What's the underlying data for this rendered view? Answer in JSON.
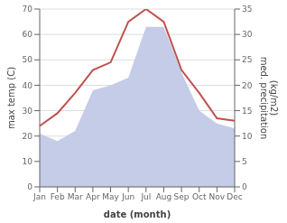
{
  "chart_data": {
    "type": "line",
    "xlabel": "date (month)",
    "ylabel": "max temp (C)",
    "y2label": "med. precipitation\n(kg/m2)",
    "categories": [
      "Jan",
      "Feb",
      "Mar",
      "Apr",
      "May",
      "Jun",
      "Jul",
      "Aug",
      "Sep",
      "Oct",
      "Nov",
      "Dec"
    ],
    "series": [
      {
        "type": "area",
        "color": "#c5cce8",
        "values": [
          21,
          18,
          22,
          38,
          40,
          43,
          63,
          63,
          45,
          30,
          25,
          23
        ]
      },
      {
        "type": "line",
        "color": "#c0504d",
        "values": [
          24,
          29,
          37,
          46,
          49,
          65,
          70,
          65,
          46,
          37,
          27,
          26
        ]
      }
    ],
    "ylim": [
      0,
      70
    ],
    "yticks": [
      0,
      10,
      20,
      30,
      40,
      50,
      60,
      70
    ],
    "y2lim": [
      0,
      35
    ],
    "y2ticks": [
      0,
      5,
      10,
      15,
      20,
      25,
      30,
      35
    ],
    "grid": true
  }
}
